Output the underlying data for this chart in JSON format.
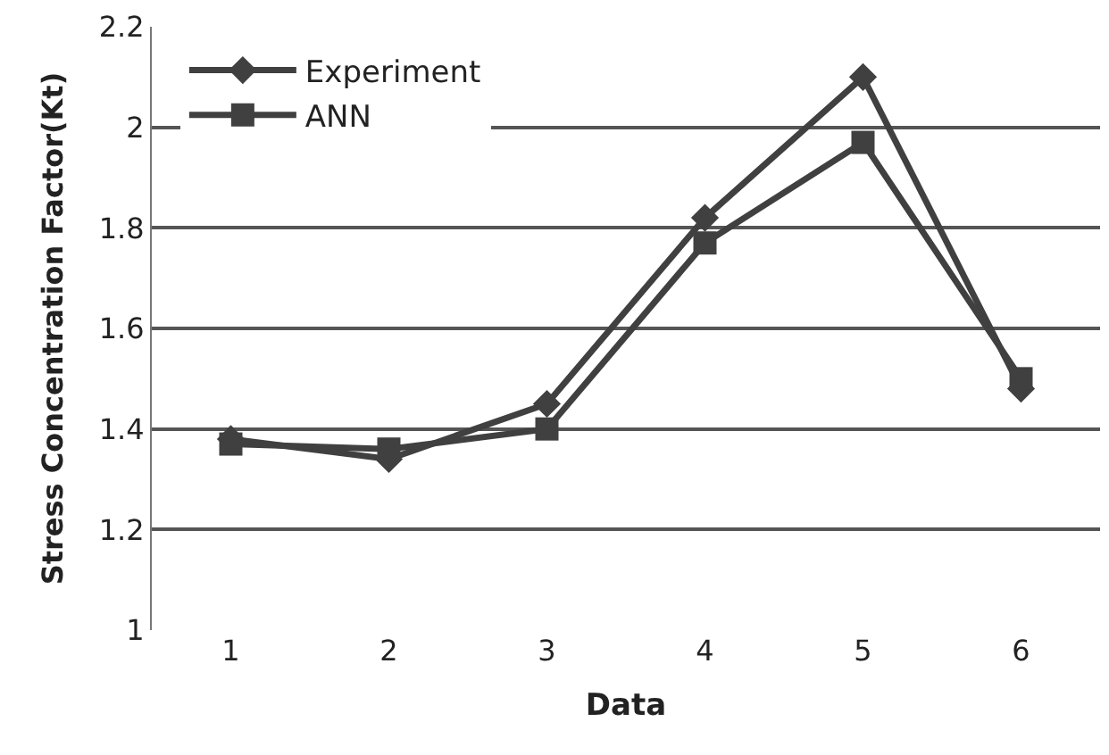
{
  "chart_data": {
    "type": "line",
    "xlabel": "Data",
    "ylabel": "Stress Concentration Factor(Kt)",
    "categories": [
      "1",
      "2",
      "3",
      "4",
      "5",
      "6"
    ],
    "series": [
      {
        "name": "Experiment",
        "color": "#404040",
        "marker": "diamond",
        "values": [
          1.38,
          1.34,
          1.45,
          1.82,
          2.1,
          1.48
        ]
      },
      {
        "name": "ANN",
        "color": "#404040",
        "marker": "square",
        "values": [
          1.37,
          1.36,
          1.4,
          1.77,
          1.97,
          1.5
        ]
      }
    ],
    "ylim": [
      1,
      2.2
    ],
    "yticks": [
      1,
      1.2,
      1.4,
      1.6,
      1.8,
      2,
      2.2
    ],
    "grid": "y",
    "legend": "top left",
    "line_style": "solid"
  }
}
